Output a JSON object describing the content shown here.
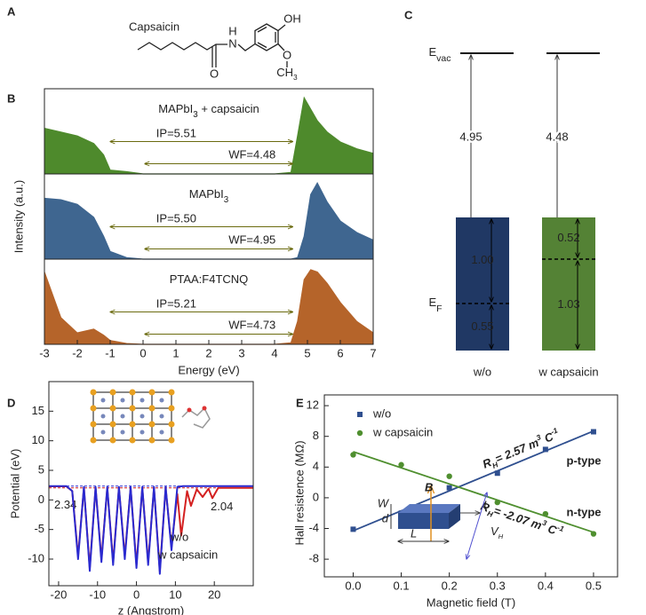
{
  "panel_a": {
    "label": "A",
    "name": "Capsaicin",
    "hydroxyl": "OH",
    "amine_h": "H",
    "nitrogen": "N",
    "carbonyl_o": "O",
    "ether_o": "O",
    "methyl": [
      {
        "t": "CH"
      },
      {
        "t": "3",
        "sub": true
      }
    ]
  },
  "panel_c": {
    "label": "C",
    "vacuum": [
      {
        "t": "E"
      },
      {
        "t": "vac",
        "sub": true
      }
    ],
    "fermi": [
      {
        "t": "E"
      },
      {
        "t": "F",
        "sub": true
      }
    ],
    "columns": [
      {
        "name": "w/o",
        "work_function": "4.95",
        "above_fermi": "1.00",
        "below_fermi": "0.55",
        "color": "#203864"
      },
      {
        "name": "w capsaicin",
        "work_function": "4.48",
        "above_fermi": "0.52",
        "below_fermi": "1.03",
        "color": "#548235"
      }
    ]
  },
  "chart_data": [
    {
      "type": "area",
      "label": "B",
      "ylabel": "Intensity (a.u.)",
      "xlabel": "Energy (eV)",
      "xlim": [
        -3,
        7
      ],
      "xticks": [
        -3,
        -2,
        -1,
        0,
        1,
        2,
        3,
        4,
        5,
        6,
        7
      ],
      "annotation_color": "#6b6b10",
      "panels": [
        {
          "title": [
            {
              "t": "MAPbI"
            },
            {
              "t": "3",
              "sub": true
            },
            {
              "t": " + capsaicin"
            }
          ],
          "color": "#4e8a2c",
          "ylim": [
            0,
            1.05
          ],
          "x": [
            -3,
            -2.5,
            -2,
            -1.5,
            -1.2,
            -1,
            -0.5,
            0,
            1,
            2,
            3,
            4,
            4.5,
            4.7,
            4.9,
            5.1,
            5.3,
            5.6,
            6,
            6.5,
            7
          ],
          "values": [
            0.6,
            0.55,
            0.5,
            0.4,
            0.25,
            0.05,
            0.03,
            0,
            0,
            0,
            0,
            0,
            0.02,
            0.5,
            1.0,
            0.85,
            0.7,
            0.55,
            0.42,
            0.33,
            0.27
          ],
          "annotations": [
            "IP=5.51",
            "WF=4.48"
          ]
        },
        {
          "title": [
            {
              "t": "MAPbI"
            },
            {
              "t": "3",
              "sub": true
            }
          ],
          "color": "#3f6690",
          "ylim": [
            0,
            1.05
          ],
          "x": [
            -3,
            -2.5,
            -2,
            -1.5,
            -1.2,
            -1,
            -0.5,
            0,
            1,
            2,
            3,
            4,
            4.5,
            4.7,
            4.9,
            5.1,
            5.3,
            5.6,
            6,
            6.5,
            7
          ],
          "values": [
            0.8,
            0.78,
            0.72,
            0.55,
            0.3,
            0.1,
            0.02,
            0,
            0,
            0,
            0,
            0,
            0,
            0.02,
            0.3,
            0.85,
            1.0,
            0.75,
            0.5,
            0.35,
            0.25
          ],
          "annotations": [
            "IP=5.50",
            "WF=4.95"
          ]
        },
        {
          "title": [
            {
              "t": "PTAA:F4TCNQ"
            }
          ],
          "color": "#b5642a",
          "ylim": [
            0,
            1.05
          ],
          "x": [
            -3,
            -2.5,
            -2,
            -1.5,
            -1.2,
            -1,
            -0.5,
            0,
            1,
            2,
            3,
            4,
            4.5,
            4.7,
            4.9,
            5.1,
            5.3,
            5.6,
            6,
            6.5,
            7
          ],
          "values": [
            0.95,
            0.35,
            0.15,
            0.2,
            0.12,
            0.05,
            0.01,
            0,
            0,
            0,
            0,
            0,
            0.02,
            0.3,
            0.85,
            0.98,
            0.95,
            0.8,
            0.55,
            0.3,
            0.15
          ],
          "annotations": [
            "IP=5.21",
            "WF=4.73"
          ]
        }
      ]
    },
    {
      "type": "line",
      "label": "D",
      "ylabel": "Potential (eV)",
      "xlabel": "z (Angstrom)",
      "xlim": [
        -22.5,
        30
      ],
      "xticks": [
        -20,
        -10,
        0,
        10,
        20
      ],
      "ylim": [
        -14.5,
        20
      ],
      "yticks": [
        -10,
        -5,
        0,
        5,
        10,
        15
      ],
      "series": [
        {
          "name": "w/o",
          "color": "#d42020",
          "x": [
            -22.5,
            -18,
            -16.5,
            -15,
            -13.5,
            -12,
            -10.5,
            -9,
            -7.5,
            -6,
            -4.5,
            -3,
            -1.5,
            0,
            1.5,
            3,
            4.5,
            6,
            7.5,
            9,
            10.5,
            11.5,
            13,
            14,
            15.5,
            17,
            18.5,
            19.5,
            21,
            30
          ],
          "values": [
            2.3,
            2.3,
            1.5,
            -9.5,
            2.0,
            -11.5,
            2.0,
            -10,
            2.0,
            -10.5,
            2.0,
            -9.5,
            2.0,
            -11,
            2.0,
            -10.5,
            2.0,
            -12,
            2.0,
            -8,
            1.0,
            -6,
            1.5,
            -1,
            1.8,
            0.5,
            1.9,
            0.3,
            2.04,
            2.04
          ]
        },
        {
          "name": "w capsaicin",
          "color": "#2a2ad0",
          "x": [
            -22.5,
            -18,
            -16.5,
            -15,
            -13.5,
            -12,
            -10.5,
            -9,
            -7.5,
            -6,
            -4.5,
            -3,
            -1.5,
            0,
            1.5,
            3,
            4.5,
            6,
            7.5,
            9,
            10.5,
            12,
            30
          ],
          "values": [
            2.34,
            2.34,
            1.5,
            -10,
            2.2,
            -12,
            2.2,
            -10.5,
            2.2,
            -11,
            2.2,
            -10,
            2.2,
            -11.5,
            2.2,
            -11,
            2.2,
            -12.5,
            2.2,
            -8.5,
            2.2,
            2.34,
            2.34
          ]
        }
      ],
      "hlines": [
        {
          "value": 2.34,
          "label": "2.34",
          "color": "#2a2ad0"
        },
        {
          "value": 2.04,
          "label": "2.04",
          "color": "#d42020"
        }
      ]
    },
    {
      "type": "scatter",
      "label": "E",
      "ylabel": "Hall resistence (MΩ)",
      "xlabel": "Magnetic field (T)",
      "xlim": [
        -0.06,
        0.55
      ],
      "xticks": [
        {
          "value": 0,
          "label": "0.0"
        },
        0.1,
        0.2,
        0.3,
        0.4,
        0.5
      ],
      "ylim": [
        -10.3,
        13.4
      ],
      "yticks": [
        -8,
        -4,
        0,
        4,
        8,
        12
      ],
      "series": [
        {
          "name": "w/o",
          "color": "#2f4f8f",
          "marker": "square",
          "x": [
            0,
            0.1,
            0.2,
            0.3,
            0.4,
            0.5
          ],
          "values": [
            -4.1,
            -2,
            1.3,
            3.2,
            6.3,
            8.6
          ],
          "fit": {
            "x": [
              0,
              0.5
            ],
            "values": [
              -4.3,
              8.7
            ]
          },
          "fit_label": [
            {
              "t": "R"
            },
            {
              "t": "H",
              "sub": true
            },
            {
              "t": "= 2.57 m"
            },
            {
              "t": "3",
              "sup": true
            },
            {
              "t": " C"
            },
            {
              "t": "-1",
              "sup": true
            }
          ],
          "type_label": "p-type"
        },
        {
          "name": "w capsaicin",
          "color": "#4f8f2f",
          "marker": "circle",
          "x": [
            0,
            0.1,
            0.2,
            0.3,
            0.4,
            0.5
          ],
          "values": [
            5.6,
            4.3,
            2.8,
            -0.6,
            -2.1,
            -4.7
          ],
          "fit": {
            "x": [
              0,
              0.5
            ],
            "values": [
              6.0,
              -4.5
            ]
          },
          "fit_label": [
            {
              "t": "R"
            },
            {
              "t": "H",
              "sub": true
            },
            {
              "t": "= -2.07 m"
            },
            {
              "t": "3",
              "sup": true
            },
            {
              "t": " C"
            },
            {
              "t": "-1",
              "sup": true
            }
          ],
          "type_label": "n-type"
        }
      ],
      "inset": {
        "field": "B",
        "width": "W",
        "thickness": "d",
        "length": "L",
        "current": "I",
        "voltage": [
          {
            "t": "V"
          },
          {
            "t": "H",
            "sub": true
          }
        ]
      }
    }
  ]
}
